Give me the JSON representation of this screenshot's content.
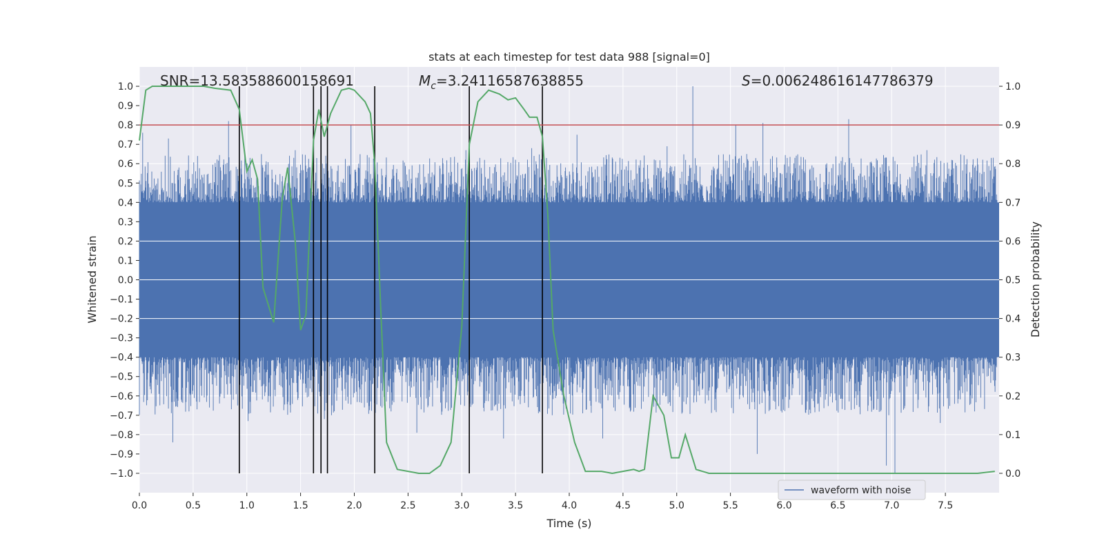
{
  "chart_data": {
    "type": "line",
    "title": "stats at each timestep for test data 988 [signal=0]",
    "xlabel": "Time (s)",
    "ylabel_left": "Whitened strain",
    "ylabel_right": "Detection probability",
    "xlim": [
      0,
      8
    ],
    "ylim_left": [
      -1.1,
      1.1
    ],
    "ylim_right": [
      -0.05,
      1.05
    ],
    "x_ticks": [
      0,
      0.5,
      1.0,
      1.5,
      2.0,
      2.5,
      3.0,
      3.5,
      4.0,
      4.5,
      5.0,
      5.5,
      6.0,
      6.5,
      7.0,
      7.5
    ],
    "x_tick_labels": [
      "0.0",
      "0.5",
      "1.0",
      "1.5",
      "2.0",
      "2.5",
      "3.0",
      "3.5",
      "4.0",
      "4.5",
      "5.0",
      "5.5",
      "6.0",
      "6.5",
      "7.0",
      "7.5"
    ],
    "y_ticks_left": [
      1.0,
      0.9,
      0.8,
      0.7,
      0.6,
      0.5,
      0.4,
      0.3,
      0.2,
      0.1,
      0.0,
      -0.1,
      -0.2,
      -0.3,
      -0.4,
      -0.5,
      -0.6,
      -0.7,
      -0.8,
      -0.9,
      -1.0
    ],
    "y_tick_labels_left": [
      "1.0",
      "0.9",
      "0.8",
      "0.7",
      "0.6",
      "0.5",
      "0.4",
      "0.3",
      "0.2",
      "0.1",
      "0.0",
      "−0.1",
      "−0.2",
      "−0.3",
      "−0.4",
      "−0.5",
      "−0.6",
      "−0.7",
      "−0.8",
      "−0.9",
      "−1.0"
    ],
    "y_ticks_right": [
      1.0,
      0.9,
      0.8,
      0.7,
      0.6,
      0.5,
      0.4,
      0.3,
      0.2,
      0.1,
      0.0
    ],
    "y_tick_labels_right": [
      "1.0",
      "0.9",
      "0.8",
      "0.7",
      "0.6",
      "0.5",
      "0.4",
      "0.3",
      "0.2",
      "0.1",
      "0.0"
    ],
    "annotations": {
      "snr": "SNR=13.583588600158691",
      "mc_symbol": "M",
      "mc_subscript": "c",
      "mc_value": "=3.24116587638855",
      "s_symbol": "S",
      "s_value": "=0.006248616147786379"
    },
    "legend": {
      "label": "waveform with noise",
      "position": "lower-center"
    },
    "threshold": {
      "value": 0.9,
      "color": "#c44e52"
    },
    "vertical_markers": [
      0.93,
      1.62,
      1.69,
      1.75,
      2.19,
      3.07,
      3.75
    ],
    "marker_range": [
      -1.0,
      1.0
    ],
    "waveform": {
      "name": "waveform with noise",
      "color": "#4c72b0",
      "core_band": [
        -0.4,
        0.4
      ],
      "typical_peak": 0.6,
      "peaks": [
        [
          0.03,
          0.76
        ],
        [
          0.27,
          0.73
        ],
        [
          0.83,
          0.82
        ],
        [
          1.45,
          0.67
        ],
        [
          1.97,
          0.8
        ],
        [
          3.04,
          0.67
        ],
        [
          3.65,
          0.68
        ],
        [
          4.07,
          0.75
        ],
        [
          4.91,
          0.69
        ],
        [
          5.15,
          1.0
        ],
        [
          5.55,
          0.8
        ],
        [
          5.8,
          0.81
        ],
        [
          6.6,
          0.83
        ],
        [
          7.33,
          0.67
        ]
      ],
      "troughs": [
        [
          0.31,
          -0.84
        ],
        [
          0.46,
          -0.68
        ],
        [
          1.01,
          -0.73
        ],
        [
          1.72,
          -0.72
        ],
        [
          2.58,
          -0.79
        ],
        [
          3.39,
          -0.82
        ],
        [
          4.31,
          -0.82
        ],
        [
          5.75,
          -0.9
        ],
        [
          6.95,
          -0.96
        ],
        [
          7.03,
          -1.0
        ],
        [
          7.45,
          -0.74
        ]
      ],
      "grid": true
    },
    "probability": {
      "name": "detection probability",
      "color": "#55a868",
      "x": [
        0.0,
        0.06,
        0.12,
        0.3,
        0.6,
        0.7,
        0.85,
        0.93,
        1.0,
        1.05,
        1.1,
        1.15,
        1.25,
        1.33,
        1.38,
        1.45,
        1.5,
        1.55,
        1.62,
        1.67,
        1.72,
        1.78,
        1.88,
        1.95,
        2.0,
        2.1,
        2.15,
        2.19,
        2.25,
        2.3,
        2.4,
        2.5,
        2.6,
        2.7,
        2.8,
        2.9,
        3.0,
        3.07,
        3.15,
        3.25,
        3.35,
        3.43,
        3.5,
        3.58,
        3.63,
        3.7,
        3.75,
        3.8,
        3.85,
        3.95,
        4.05,
        4.15,
        4.3,
        4.4,
        4.5,
        4.6,
        4.65,
        4.7,
        4.78,
        4.88,
        4.95,
        5.02,
        5.08,
        5.18,
        5.3,
        5.5,
        5.8,
        6.0,
        6.3,
        6.6,
        6.9,
        7.0,
        7.3,
        7.6,
        7.8,
        7.96
      ],
      "y": [
        0.86,
        0.99,
        1.0,
        1.0,
        1.0,
        0.995,
        0.99,
        0.94,
        0.78,
        0.81,
        0.76,
        0.48,
        0.39,
        0.71,
        0.79,
        0.6,
        0.37,
        0.41,
        0.86,
        0.94,
        0.87,
        0.93,
        0.99,
        0.995,
        0.99,
        0.96,
        0.93,
        0.8,
        0.4,
        0.08,
        0.01,
        0.005,
        0.0,
        0.0,
        0.02,
        0.08,
        0.38,
        0.85,
        0.96,
        0.99,
        0.98,
        0.965,
        0.97,
        0.94,
        0.92,
        0.92,
        0.87,
        0.67,
        0.37,
        0.2,
        0.08,
        0.005,
        0.005,
        0.0,
        0.005,
        0.01,
        0.005,
        0.01,
        0.2,
        0.15,
        0.04,
        0.04,
        0.1,
        0.01,
        0.0,
        0.0,
        0.0,
        0.0,
        0.0,
        0.0,
        0.0,
        0.0,
        0.0,
        0.0,
        0.0,
        0.005
      ]
    }
  }
}
